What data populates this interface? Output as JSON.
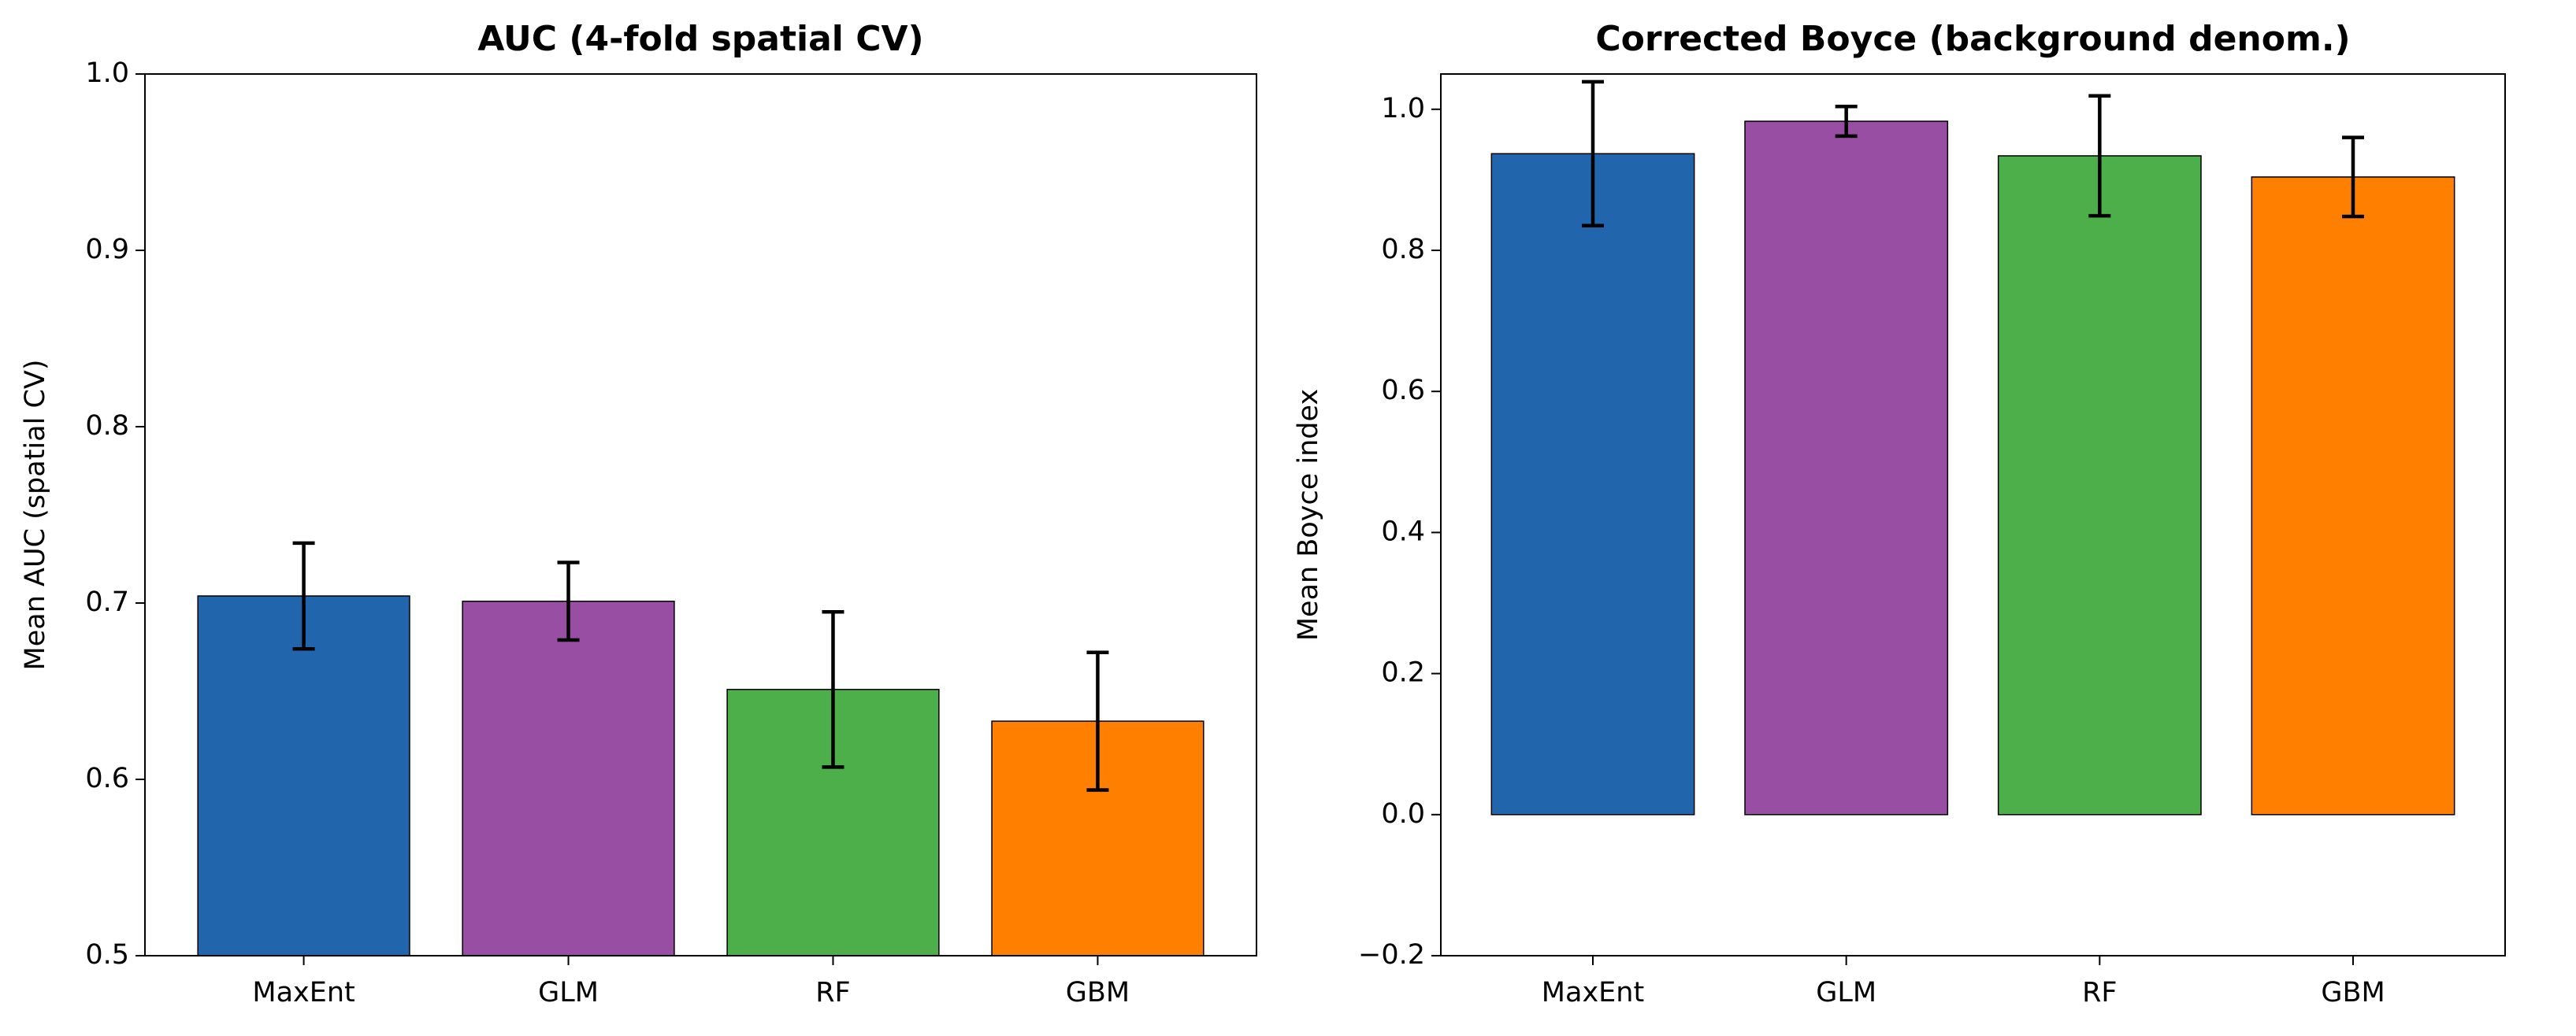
{
  "chart_data": [
    {
      "type": "bar",
      "title": "AUC (4-fold spatial CV)",
      "y_label": "Mean AUC (spatial CV)",
      "categories": [
        "MaxEnt",
        "GLM",
        "RF",
        "GBM"
      ],
      "values": [
        0.704,
        0.701,
        0.651,
        0.633
      ],
      "errors": [
        0.03,
        0.022,
        0.044,
        0.039
      ],
      "colors": [
        "#2166ac",
        "#984ea3",
        "#4daf4a",
        "#ff7f00"
      ],
      "ylim": [
        0.5,
        1.0
      ],
      "yticks": [
        0.5,
        0.6,
        0.7,
        0.8,
        0.9,
        {
          "value": 1,
          "label": "1.0"
        }
      ]
    },
    {
      "type": "bar",
      "title": "Corrected Boyce (background denom.)",
      "y_label": "Mean Boyce index",
      "categories": [
        "MaxEnt",
        "GLM",
        "RF",
        "GBM"
      ],
      "values": [
        0.937,
        0.983,
        0.934,
        0.904
      ],
      "errors": [
        0.102,
        0.021,
        0.085,
        0.056
      ],
      "colors": [
        "#2166ac",
        "#984ea3",
        "#4daf4a",
        "#ff7f00"
      ],
      "ylim": [
        -0.2,
        1.05
      ],
      "yticks": [
        {
          "value": -0.2,
          "label": "−0.2"
        },
        {
          "value": 0,
          "label": "0.0"
        },
        0.2,
        0.4,
        0.6,
        0.8,
        {
          "value": 1,
          "label": "1.0"
        }
      ]
    }
  ]
}
